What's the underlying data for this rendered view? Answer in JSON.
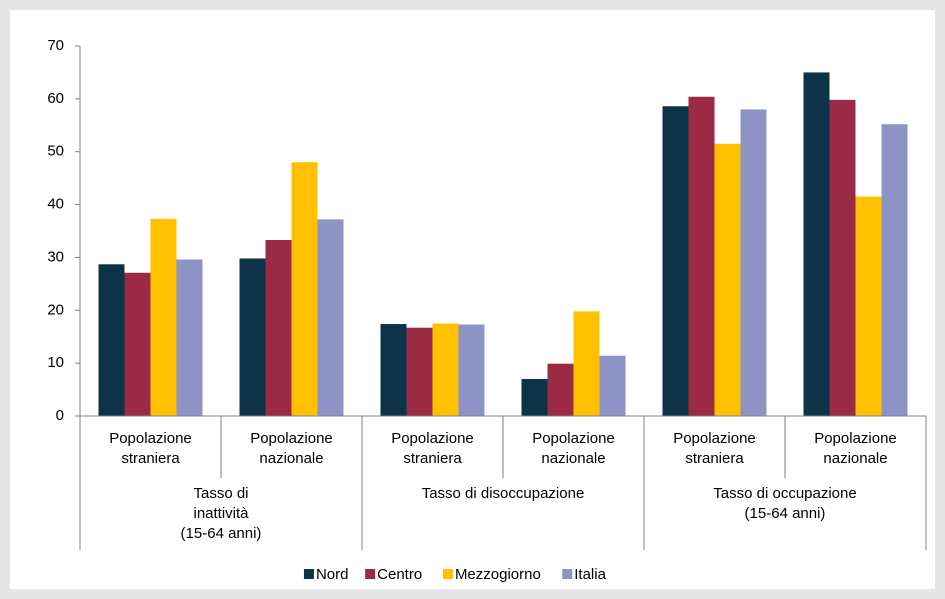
{
  "chart_data": {
    "type": "bar",
    "categories": [
      [
        "Popolazione",
        "straniera"
      ],
      [
        "Popolazione",
        "nazionale"
      ],
      [
        "Popolazione",
        "straniera"
      ],
      [
        "Popolazione",
        "nazionale"
      ],
      [
        "Popolazione",
        "straniera"
      ],
      [
        "Popolazione",
        "nazionale"
      ]
    ],
    "groups": [
      [
        "Tasso di",
        "inattività",
        "(15-64 anni)"
      ],
      [
        "Tasso di disoccupazione"
      ],
      [
        "Tasso di occupazione",
        "(15-64 anni)"
      ]
    ],
    "series": [
      {
        "name": "Nord",
        "color": "#0d3349",
        "values": [
          28.7,
          29.8,
          17.4,
          7.0,
          58.6,
          65.0
        ]
      },
      {
        "name": "Centro",
        "color": "#9b2a45",
        "values": [
          27.1,
          33.3,
          16.7,
          9.9,
          60.4,
          59.8
        ]
      },
      {
        "name": "Mezzogiorno",
        "color": "#ffc000",
        "values": [
          37.3,
          48.0,
          17.5,
          19.8,
          51.5,
          41.5
        ]
      },
      {
        "name": "Italia",
        "color": "#8e93c6",
        "values": [
          29.6,
          37.2,
          17.3,
          11.4,
          58.0,
          55.2
        ]
      }
    ],
    "ylim": [
      0,
      70
    ],
    "yticks": [
      0,
      10,
      20,
      30,
      40,
      50,
      60,
      70
    ],
    "grid": false,
    "legend": "bottom"
  }
}
